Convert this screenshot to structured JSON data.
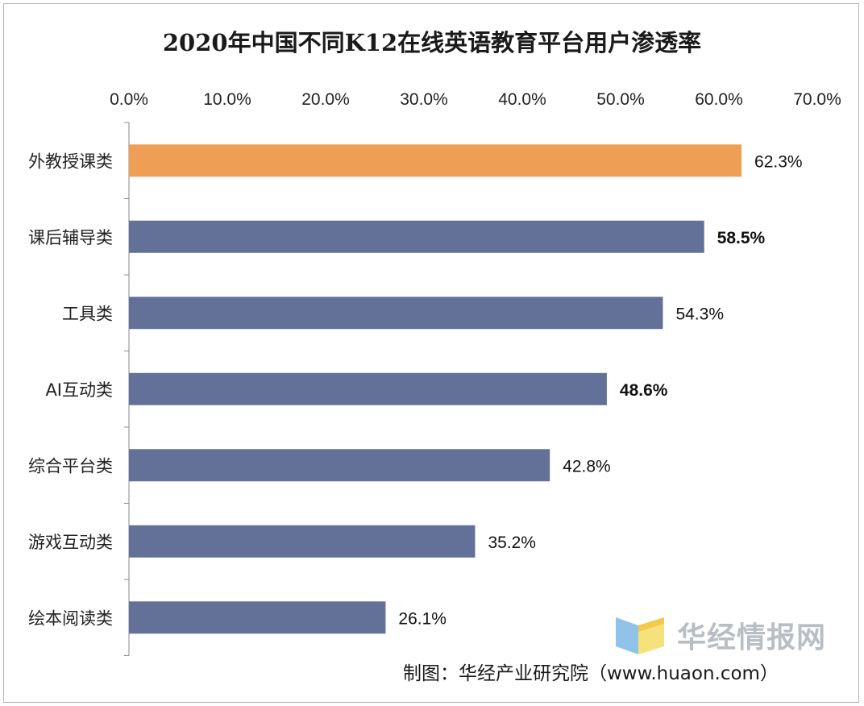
{
  "chart_data": {
    "type": "bar",
    "orientation": "horizontal",
    "title": "2020年中国不同K12在线英语教育平台用户渗透率",
    "categories": [
      "外教授课类",
      "课后辅导类",
      "工具类",
      "AI互动类",
      "综合平台类",
      "游戏互动类",
      "绘本阅读类"
    ],
    "values": [
      62.3,
      58.5,
      54.3,
      48.6,
      42.8,
      35.2,
      26.1
    ],
    "data_labels": [
      "62.3%",
      "58.5%",
      "54.3%",
      "48.6%",
      "42.8%",
      "35.2%",
      "26.1%"
    ],
    "bold_labels": [
      false,
      true,
      false,
      true,
      false,
      false,
      false
    ],
    "xlim": [
      0,
      70
    ],
    "xticks": [
      "0.0%",
      "10.0%",
      "20.0%",
      "30.0%",
      "40.0%",
      "50.0%",
      "60.0%",
      "70.0%"
    ],
    "x_axis_position": "top",
    "grid": false,
    "colors": {
      "highlight": "#EE9F55",
      "default": "#637199"
    },
    "highlight_index": 0
  },
  "watermark": {
    "text": "华经情报网",
    "logo_icon": "huajing-logo-icon"
  },
  "source": "制图：华经产业研究院（www.huaon.com）"
}
